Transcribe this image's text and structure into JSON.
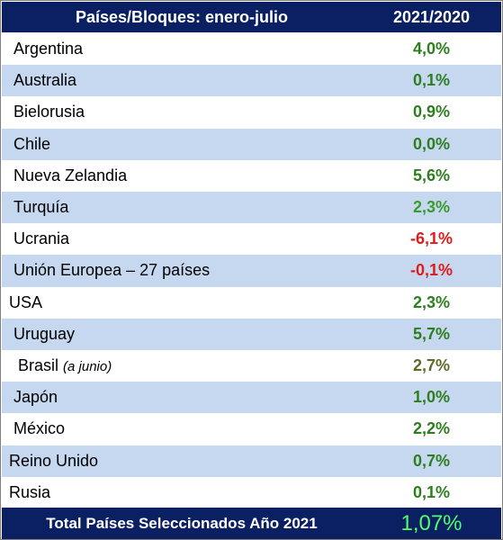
{
  "table": {
    "header": {
      "col1": "Países/Bloques: enero-julio",
      "col2": "2021/2020"
    },
    "rows": [
      {
        "country": "Argentina",
        "value": "4,0%"
      },
      {
        "country": "Australia",
        "value": "0,1%"
      },
      {
        "country": "Bielorusia",
        "value": "0,9%"
      },
      {
        "country": "Chile",
        "value": "0,0%"
      },
      {
        "country": "Nueva Zelandia",
        "value": "5,6%"
      },
      {
        "country": "Turquía",
        "value": "2,3%"
      },
      {
        "country": "Ucrania",
        "value": "-6,1%"
      },
      {
        "country": "Unión Europea – 27 países",
        "value": "-0,1%"
      },
      {
        "country": "USA",
        "value": "2,3%"
      },
      {
        "country": "Uruguay",
        "value": "5,7%"
      },
      {
        "country": "Brasil",
        "note": "(a junio)",
        "value": "2,7%"
      },
      {
        "country": "Japón",
        "value": "1,0%"
      },
      {
        "country": "México",
        "value": "2,2%"
      },
      {
        "country": "Reino Unido",
        "value": "0,7%"
      },
      {
        "country": "Rusia",
        "value": "0,1%"
      }
    ],
    "footer": {
      "label": "Total Países Seleccionados Año 2021",
      "value": "1,07%"
    }
  },
  "colors": {
    "header_bg": "#0b1f63",
    "alt_row_bg": "#c6d8f0",
    "positive": "#2e7d1f",
    "negative": "#e01b1b",
    "footer_value": "#4dff6a"
  }
}
